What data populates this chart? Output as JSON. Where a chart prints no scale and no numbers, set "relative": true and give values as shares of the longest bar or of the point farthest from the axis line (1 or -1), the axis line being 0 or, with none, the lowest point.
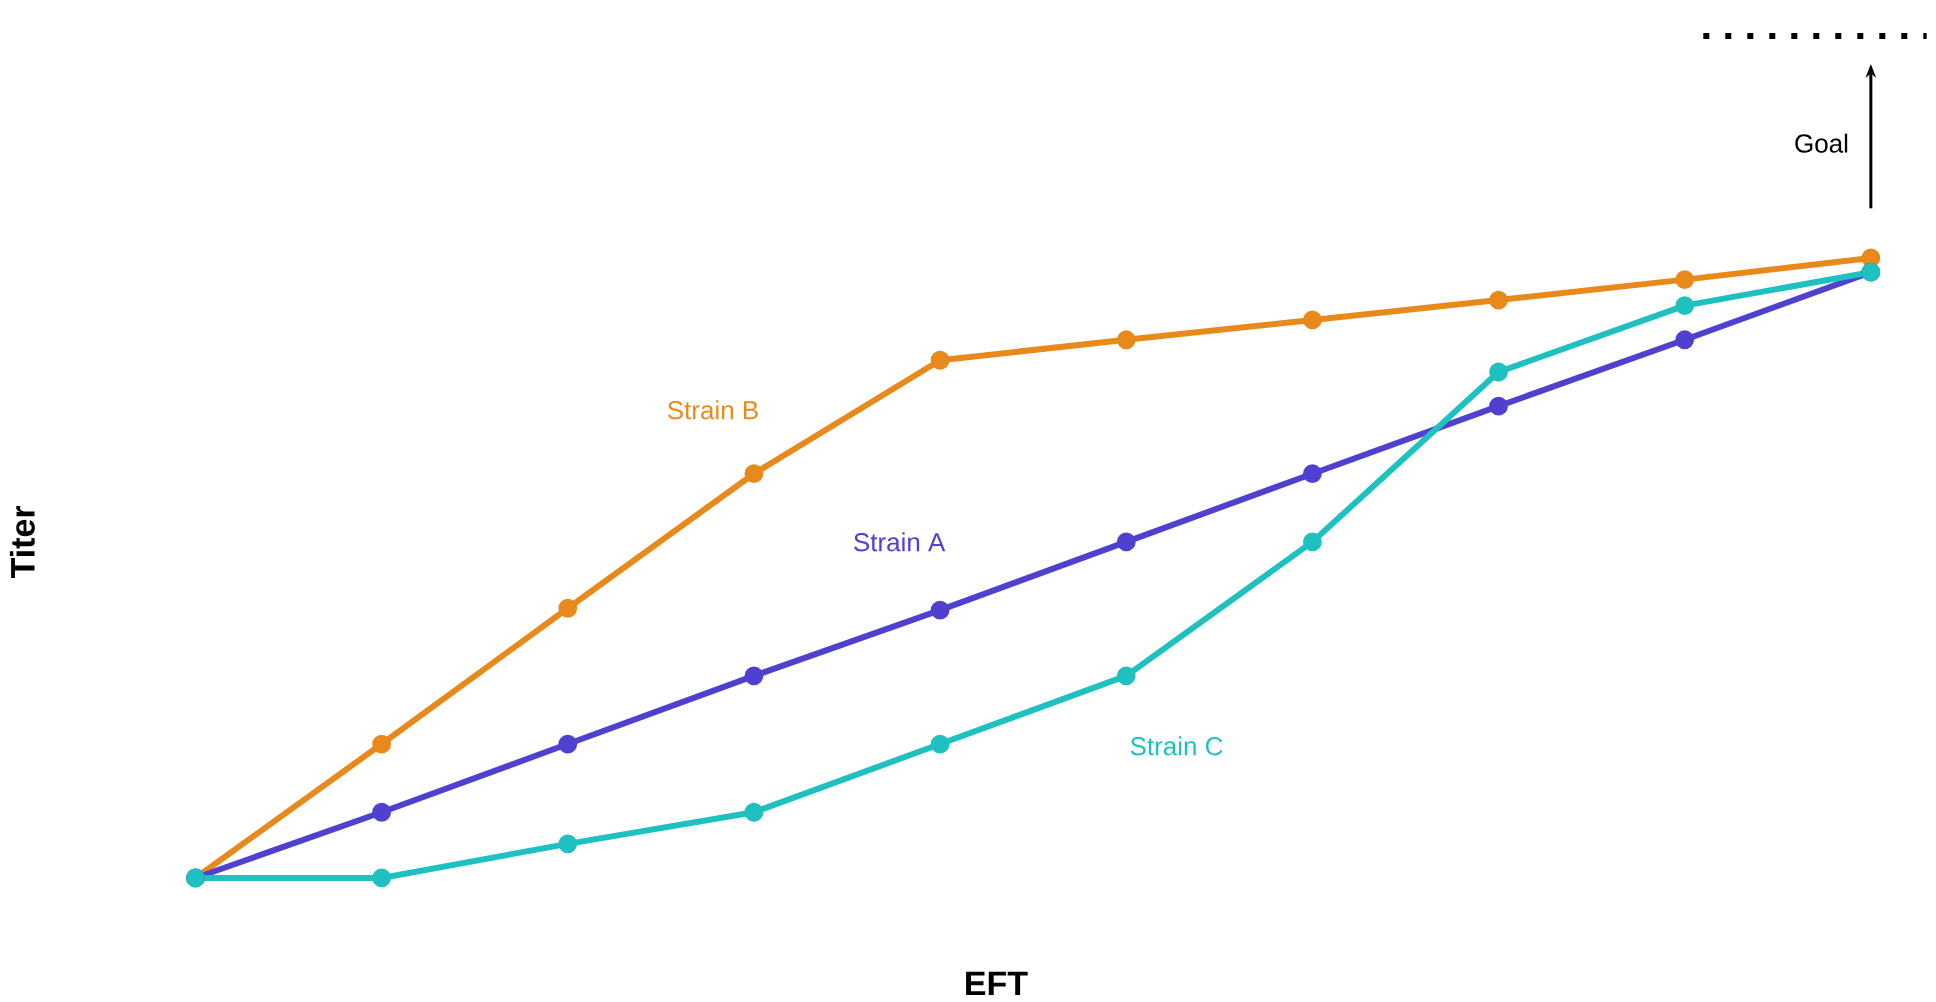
{
  "chart_data": {
    "type": "line",
    "relative": true,
    "xlabel": "EFT",
    "ylabel": "Titer",
    "categories": [
      null,
      null,
      null,
      null,
      null,
      null,
      null,
      null,
      null,
      null
    ],
    "marker": "circle",
    "series": [
      {
        "name": "Strain B",
        "color": "#e8891c",
        "values": [
          0,
          0.216,
          0.435,
          0.652,
          0.835,
          0.868,
          0.9,
          0.932,
          0.965,
          1
        ]
      },
      {
        "name": "Strain A",
        "color": "#5040d0",
        "values": [
          0,
          0.106,
          0.216,
          0.326,
          0.432,
          0.542,
          0.652,
          0.761,
          0.868,
          0.977
        ]
      },
      {
        "name": "Strain C",
        "color": "#1ec0c0",
        "values": [
          0,
          0,
          0.055,
          0.106,
          0.216,
          0.326,
          0.542,
          0.816,
          0.923,
          0.977
        ]
      }
    ],
    "annotations": [
      "Goal"
    ]
  }
}
